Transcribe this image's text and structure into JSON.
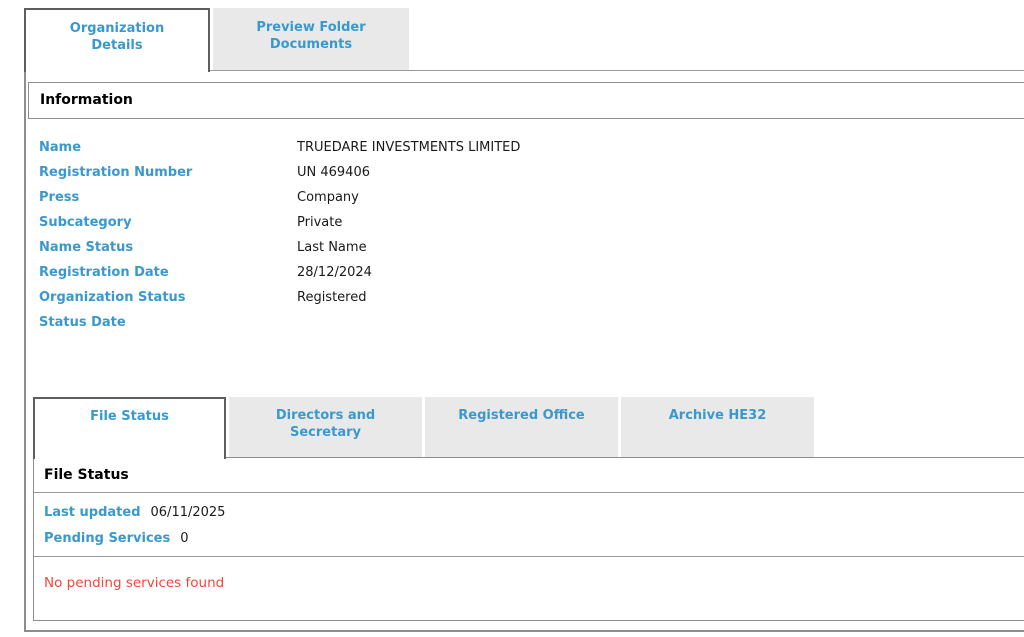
{
  "colors": {
    "accent_blue": "#3a99cc",
    "error_red": "#f4453a",
    "inactive_tab_bg": "#e9e9e9",
    "border_gray": "#8d8d8d"
  },
  "top_tabs": {
    "items": [
      {
        "label": "Organization Details",
        "active": true
      },
      {
        "label": "Preview Folder Documents",
        "active": false
      }
    ]
  },
  "information": {
    "header": "Information",
    "fields": [
      {
        "label": "Name",
        "value": "TRUEDARE INVESTMENTS LIMITED"
      },
      {
        "label": "Registration Number",
        "value": "UN 469406"
      },
      {
        "label": "Press",
        "value": "Company"
      },
      {
        "label": "Subcategory",
        "value": "Private"
      },
      {
        "label": "Name Status",
        "value": "Last Name"
      },
      {
        "label": "Registration Date",
        "value": "28/12/2024"
      },
      {
        "label": "Organization Status",
        "value": "Registered"
      },
      {
        "label": "Status Date",
        "value": ""
      }
    ]
  },
  "sub_tabs": {
    "items": [
      {
        "label": "File Status",
        "active": true
      },
      {
        "label": "Directors and Secretary",
        "active": false
      },
      {
        "label": "Registered Office",
        "active": false
      },
      {
        "label": "Archive HE32",
        "active": false
      }
    ]
  },
  "file_status": {
    "header": "File Status",
    "last_updated_label": "Last updated",
    "last_updated_value": "06/11/2025",
    "pending_services_label": "Pending Services",
    "pending_services_value": "0",
    "empty_message": "No pending services found"
  }
}
